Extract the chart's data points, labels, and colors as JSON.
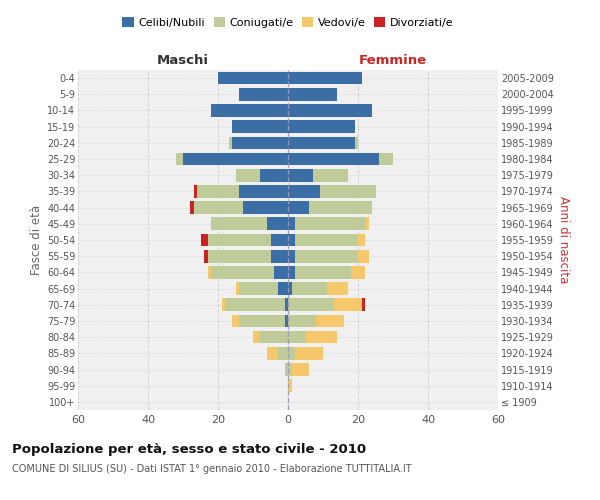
{
  "age_groups": [
    "100+",
    "95-99",
    "90-94",
    "85-89",
    "80-84",
    "75-79",
    "70-74",
    "65-69",
    "60-64",
    "55-59",
    "50-54",
    "45-49",
    "40-44",
    "35-39",
    "30-34",
    "25-29",
    "20-24",
    "15-19",
    "10-14",
    "5-9",
    "0-4"
  ],
  "birth_years": [
    "≤ 1909",
    "1910-1914",
    "1915-1919",
    "1920-1924",
    "1925-1929",
    "1930-1934",
    "1935-1939",
    "1940-1944",
    "1945-1949",
    "1950-1954",
    "1955-1959",
    "1960-1964",
    "1965-1969",
    "1970-1974",
    "1975-1979",
    "1980-1984",
    "1985-1989",
    "1990-1994",
    "1995-1999",
    "2000-2004",
    "2005-2009"
  ],
  "male": {
    "celibi": [
      0,
      0,
      0,
      0,
      0,
      1,
      1,
      3,
      4,
      5,
      5,
      6,
      13,
      14,
      8,
      30,
      16,
      16,
      22,
      14,
      20
    ],
    "coniugati": [
      0,
      0,
      1,
      3,
      8,
      13,
      17,
      11,
      18,
      18,
      18,
      16,
      14,
      12,
      7,
      2,
      1,
      0,
      0,
      0,
      0
    ],
    "vedovi": [
      0,
      0,
      0,
      3,
      2,
      2,
      1,
      1,
      1,
      0,
      0,
      0,
      0,
      0,
      0,
      0,
      0,
      0,
      0,
      0,
      0
    ],
    "divorziati": [
      0,
      0,
      0,
      0,
      0,
      0,
      0,
      0,
      0,
      1,
      2,
      0,
      1,
      1,
      0,
      0,
      0,
      0,
      0,
      0,
      0
    ]
  },
  "female": {
    "nubili": [
      0,
      0,
      0,
      0,
      0,
      0,
      0,
      1,
      2,
      2,
      2,
      2,
      6,
      9,
      7,
      26,
      19,
      19,
      24,
      14,
      21
    ],
    "coniugate": [
      0,
      0,
      1,
      2,
      5,
      8,
      13,
      10,
      16,
      18,
      18,
      20,
      18,
      16,
      10,
      4,
      1,
      0,
      0,
      0,
      0
    ],
    "vedove": [
      0,
      1,
      5,
      8,
      9,
      8,
      8,
      6,
      4,
      3,
      2,
      1,
      0,
      0,
      0,
      0,
      0,
      0,
      0,
      0,
      0
    ],
    "divorziate": [
      0,
      0,
      0,
      0,
      0,
      0,
      1,
      0,
      0,
      0,
      0,
      0,
      0,
      0,
      0,
      0,
      0,
      0,
      0,
      0,
      0
    ]
  },
  "colors": {
    "celibi": "#3A6EA5",
    "coniugati": "#BFCC99",
    "vedovi": "#F5C96B",
    "divorziati": "#CC2222"
  },
  "xlim": 60,
  "title": "Popolazione per età, sesso e stato civile - 2010",
  "subtitle": "COMUNE DI SILIUS (SU) - Dati ISTAT 1° gennaio 2010 - Elaborazione TUTTITALIA.IT",
  "xlabel_left": "Maschi",
  "xlabel_right": "Femmine",
  "ylabel_left": "Fasce di età",
  "ylabel_right": "Anni di nascita",
  "legend_labels": [
    "Celibi/Nubili",
    "Coniugati/e",
    "Vedovi/e",
    "Divorziati/e"
  ],
  "bg_color": "#f0f0f0",
  "plot_bg": "#ffffff"
}
